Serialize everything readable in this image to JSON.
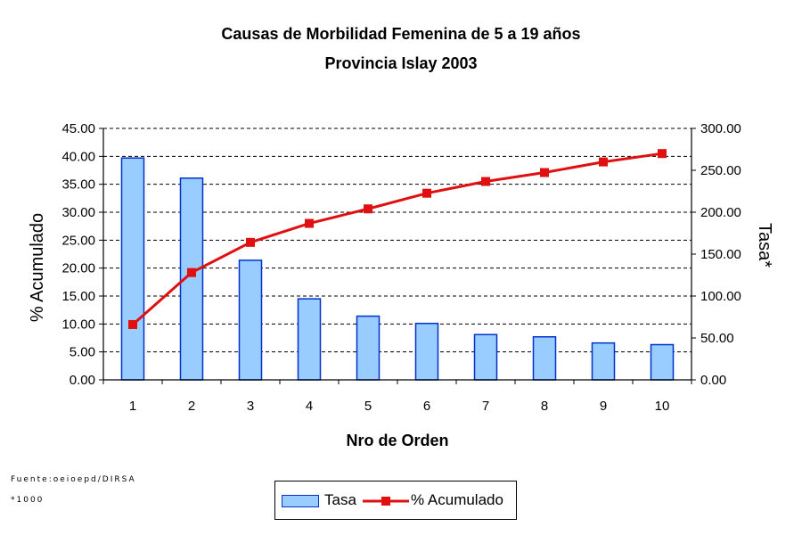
{
  "chart_data": {
    "type": "bar",
    "title": "Causas de Morbilidad Femenina de 5 a 19 años",
    "subtitle": "Provincia Islay 2003",
    "xlabel": "Nro de Orden",
    "ylabel_left": "% Acumulado",
    "ylabel_right": "Tasa*",
    "categories": [
      "1",
      "2",
      "3",
      "4",
      "5",
      "6",
      "7",
      "8",
      "9",
      "10"
    ],
    "ylim_left": [
      0,
      45
    ],
    "ylim_right": [
      0,
      300
    ],
    "yticks_left": [
      "0.00",
      "5.00",
      "10.00",
      "15.00",
      "20.00",
      "25.00",
      "30.00",
      "35.00",
      "40.00",
      "45.00"
    ],
    "yticks_right": [
      "0.00",
      "50.00",
      "100.00",
      "150.00",
      "200.00",
      "250.00",
      "300.00"
    ],
    "grid": "horizontal dashed",
    "legend_position": "bottom",
    "series": [
      {
        "name": "Tasa",
        "kind": "bar",
        "axis": "left",
        "color": "#99ccff",
        "edge": "#0033cc",
        "values": [
          39.7,
          36.1,
          21.4,
          14.5,
          11.4,
          10.1,
          8.1,
          7.7,
          6.6,
          6.3
        ]
      },
      {
        "name": "% Acumulado",
        "kind": "line",
        "axis": "left",
        "color": "#e01010",
        "values": [
          9.9,
          19.2,
          24.6,
          28.0,
          30.6,
          33.4,
          35.5,
          37.1,
          39.0,
          40.5
        ]
      }
    ]
  },
  "notes": {
    "source": "Fuente:oeioepd/DIRSA",
    "footnote": "*1000"
  },
  "legend": {
    "bar_label": "Tasa",
    "line_label": "% Acumulado"
  }
}
